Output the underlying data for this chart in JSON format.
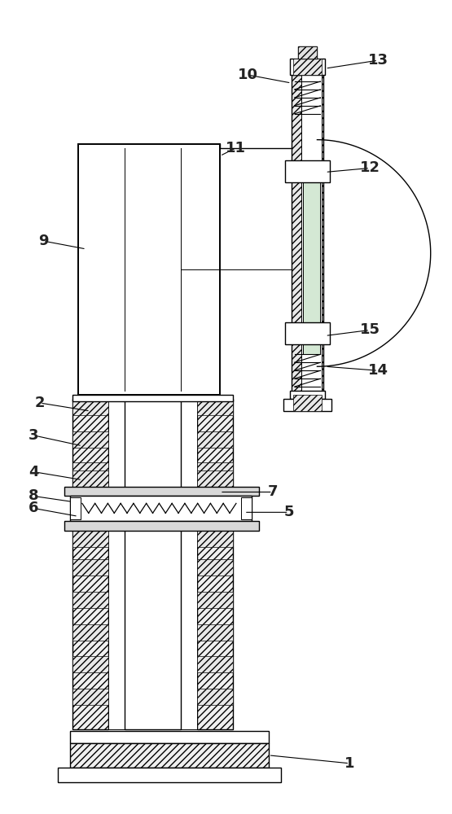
{
  "fig_width": 5.55,
  "fig_height": 10.0,
  "dpi": 100,
  "bg_color": "#ffffff",
  "lw_thin": 0.7,
  "lw_med": 1.0,
  "lw_thick": 1.4,
  "label_fontsize": 13,
  "label_color": "#222222"
}
